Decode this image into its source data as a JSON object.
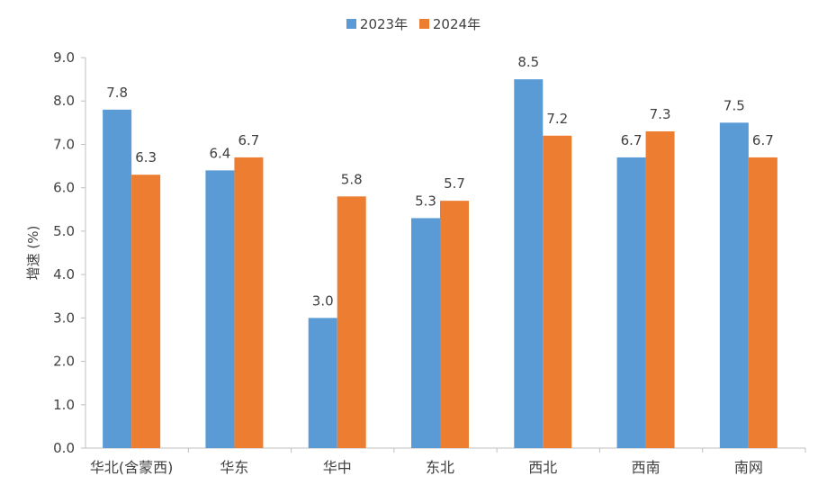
{
  "chart_data": {
    "type": "bar",
    "title": "",
    "xlabel": "",
    "ylabel": "增速 (%)",
    "ylim": [
      0,
      9
    ],
    "yticks": [
      "0.0",
      "1.0",
      "2.0",
      "3.0",
      "4.0",
      "5.0",
      "6.0",
      "7.0",
      "8.0",
      "9.0"
    ],
    "categories": [
      "华北(含蒙西)",
      "华东",
      "华中",
      "东北",
      "西北",
      "西南",
      "南网"
    ],
    "series": [
      {
        "name": "2023年",
        "color": "#5B9BD5",
        "values": [
          7.8,
          6.4,
          3.0,
          5.3,
          8.5,
          6.7,
          7.5
        ],
        "labels": [
          "7.8",
          "6.4",
          "3.0",
          "5.3",
          "8.5",
          "6.7",
          "7.5"
        ]
      },
      {
        "name": "2024年",
        "color": "#ED7D31",
        "values": [
          6.3,
          6.7,
          5.8,
          5.7,
          7.2,
          7.3,
          6.7
        ],
        "labels": [
          "6.3",
          "6.7",
          "5.8",
          "5.7",
          "7.2",
          "7.3",
          "6.7"
        ]
      }
    ],
    "legend_position": "top-center",
    "grid": false
  }
}
